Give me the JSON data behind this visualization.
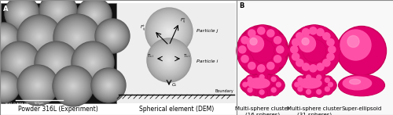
{
  "fig_width": 5.0,
  "fig_height": 1.47,
  "dpi": 100,
  "background_color": "#ffffff",
  "panel_A_label": "A",
  "panel_B_label": "B",
  "caption_left": "Powder 316L (Experiment)",
  "caption_mid": "Spherical element (DEM)",
  "caption_b1": "Multi-sphere cluster\n(16 spheres)",
  "caption_b2": "Multi-sphere cluster\n(31 spheres)",
  "caption_b3": "Super-ellipsoid",
  "sem_bg": "#111111",
  "dem_bg": "#e8e8e8",
  "panel_b_bg": "#ffffff",
  "magenta_dark": "#c8005a",
  "magenta_mid": "#e0006e",
  "magenta_bright": "#ff50a8",
  "magenta_light": "#ff90c8",
  "sphere_gray_base": 150,
  "sphere_gray_hi": 230
}
